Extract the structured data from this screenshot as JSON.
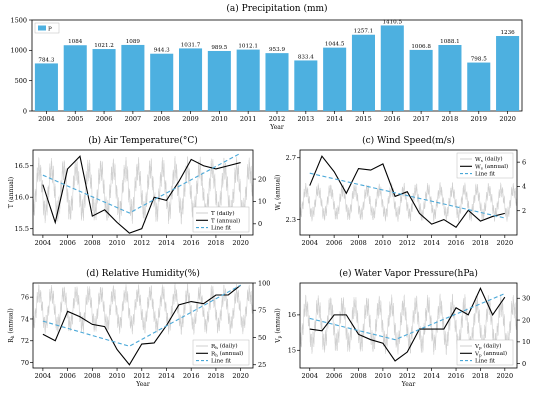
{
  "chart_data": [
    {
      "panel": "a",
      "type": "bar",
      "title": "(a) Precipitation (mm)",
      "xlabel": "Year",
      "ylabel": "",
      "legend": [
        "P"
      ],
      "legend_position": "top-left",
      "ylim": [
        0,
        1500
      ],
      "yticks": [
        0,
        500,
        1000,
        1500
      ],
      "color": "#4db0e0",
      "categories": [
        "2004",
        "2005",
        "2006",
        "2007",
        "2008",
        "2009",
        "2010",
        "2011",
        "2012",
        "2013",
        "2014",
        "2015",
        "2016",
        "2017",
        "2018",
        "2019",
        "2020"
      ],
      "values": [
        784.3,
        1084,
        1021.2,
        1089,
        944.3,
        1031.7,
        989.5,
        1012.1,
        953.9,
        833.4,
        1044.5,
        1257.1,
        1410.5,
        1006.8,
        1088.1,
        798.5,
        1236
      ],
      "value_labels": [
        "784.3",
        "1084",
        "1021.2",
        "1089",
        "944.3",
        "1031.7",
        "989.5",
        "1012.1",
        "953.9",
        "833.4",
        "1044.5",
        "1257.1",
        "1410.5",
        "1006.8",
        "1088.1",
        "798.5",
        "1236"
      ]
    },
    {
      "panel": "b",
      "type": "line",
      "title": "(b) Air Temperature(°C)",
      "xlabel": "",
      "ylabel": "T (annual)",
      "xticks": [
        "2004",
        "2006",
        "2008",
        "2010",
        "2012",
        "2014",
        "2016",
        "2018",
        "2020"
      ],
      "ylim": [
        15.4,
        16.75
      ],
      "yticks": [
        "15.5",
        "16.0",
        "16.5"
      ],
      "y2lim": [
        -5,
        33
      ],
      "y2ticks": [
        "0",
        "10",
        "20"
      ],
      "legend": [
        "T (daily)",
        "T (annual)",
        "Line fit"
      ],
      "legend_position": "bottom-right",
      "annual": {
        "x": [
          2004,
          2005,
          2006,
          2007,
          2008,
          2009,
          2010,
          2011,
          2012,
          2013,
          2014,
          2015,
          2016,
          2017,
          2018,
          2019,
          2020
        ],
        "y": [
          16.2,
          15.6,
          16.45,
          16.65,
          15.7,
          15.8,
          15.6,
          15.43,
          15.5,
          16.0,
          15.95,
          16.25,
          16.6,
          16.5,
          16.45,
          16.5,
          16.55
        ]
      },
      "fit": {
        "x": [
          2004,
          2011,
          2020
        ],
        "y": [
          16.35,
          15.75,
          16.7
        ]
      },
      "daily": {
        "mean": 15,
        "amplitude": 13
      }
    },
    {
      "panel": "c",
      "type": "line",
      "title": "(c) Wind Speed(m/s)",
      "xlabel": "",
      "ylabel": "Ws (annual)",
      "xticks": [
        "2004",
        "2006",
        "2008",
        "2010",
        "2012",
        "2014",
        "2016",
        "2018",
        "2020"
      ],
      "ylim": [
        2.2,
        2.75
      ],
      "yticks": [
        "2.3",
        "2.7"
      ],
      "y2lim": [
        0,
        7
      ],
      "y2ticks": [
        "2",
        "4",
        "6"
      ],
      "legend": [
        "Ws (daily)",
        "Ws (annual)",
        "Line fit"
      ],
      "legend_position": "top-right",
      "annual": {
        "x": [
          2004,
          2005,
          2006,
          2007,
          2008,
          2009,
          2010,
          2011,
          2012,
          2013,
          2014,
          2015,
          2016,
          2017,
          2018,
          2019,
          2020
        ],
        "y": [
          2.52,
          2.71,
          2.61,
          2.47,
          2.63,
          2.62,
          2.66,
          2.45,
          2.48,
          2.34,
          2.27,
          2.3,
          2.25,
          2.36,
          2.29,
          2.32,
          2.34
        ]
      },
      "fit": {
        "x": [
          2004,
          2020
        ],
        "y": [
          2.6,
          2.31
        ]
      },
      "daily": {
        "mean": 2.7,
        "amplitude": 1.4
      }
    },
    {
      "panel": "d",
      "type": "line",
      "title": "(d) Relative Humidity(%)",
      "xlabel": "Year",
      "ylabel": "Rh (annual)",
      "xticks": [
        "2004",
        "2006",
        "2008",
        "2010",
        "2012",
        "2014",
        "2016",
        "2018",
        "2020"
      ],
      "ylim": [
        69.5,
        77.3
      ],
      "yticks": [
        "70",
        "72",
        "74",
        "76"
      ],
      "y2lim": [
        22,
        100
      ],
      "y2ticks": [
        "25",
        "50",
        "75",
        "100"
      ],
      "legend": [
        "Rh (daily)",
        "Rh (annual)",
        "Line fit"
      ],
      "legend_position": "bottom-right",
      "annual": {
        "x": [
          2004,
          2005,
          2006,
          2007,
          2008,
          2009,
          2010,
          2011,
          2012,
          2013,
          2014,
          2015,
          2016,
          2017,
          2018,
          2019,
          2020
        ],
        "y": [
          72.6,
          72.0,
          74.7,
          74.2,
          73.5,
          73.3,
          71.2,
          69.8,
          71.7,
          71.8,
          73.4,
          75.3,
          75.6,
          75.4,
          76.2,
          76.2,
          77.1
        ]
      },
      "fit": {
        "x": [
          2004,
          2011,
          2020
        ],
        "y": [
          73.8,
          71.5,
          77.1
        ]
      },
      "daily": {
        "mean": 76,
        "amplitude": 20
      }
    },
    {
      "panel": "e",
      "type": "line",
      "title": "(e) Water Vapor Pressure(hPa)",
      "xlabel": "Year",
      "ylabel": "Vp (annual)",
      "xticks": [
        "2004",
        "2006",
        "2008",
        "2010",
        "2012",
        "2014",
        "2016",
        "2018",
        "2020"
      ],
      "ylim": [
        14.5,
        16.9
      ],
      "yticks": [
        "15",
        "16"
      ],
      "y2lim": [
        -2,
        37
      ],
      "y2ticks": [
        "0",
        "10",
        "20",
        "30"
      ],
      "legend": [
        "Vp (daily)",
        "Vp (annual)",
        "Line fit"
      ],
      "legend_position": "bottom-right",
      "annual": {
        "x": [
          2004,
          2005,
          2006,
          2007,
          2008,
          2009,
          2010,
          2011,
          2012,
          2013,
          2014,
          2015,
          2016,
          2017,
          2018,
          2019,
          2020
        ],
        "y": [
          15.6,
          15.55,
          16.0,
          16.0,
          15.45,
          15.3,
          15.2,
          14.7,
          14.95,
          15.6,
          15.6,
          15.6,
          16.2,
          16.0,
          16.75,
          16.0,
          16.5
        ]
      },
      "fit": {
        "x": [
          2004,
          2011,
          2020
        ],
        "y": [
          15.9,
          15.3,
          16.6
        ]
      },
      "daily": {
        "mean": 18,
        "amplitude": 12
      }
    }
  ]
}
